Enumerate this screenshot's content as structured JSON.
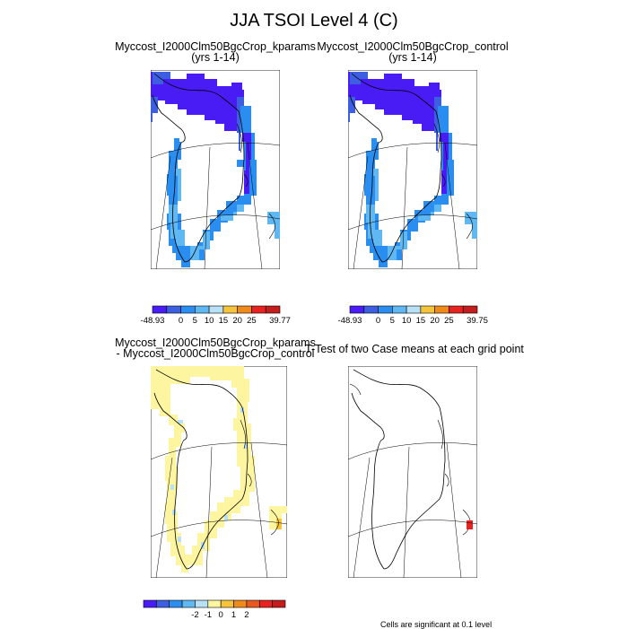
{
  "figure": {
    "title": "JJA TSOI Level 4 (C)"
  },
  "panels": {
    "top_left": {
      "title": "Myccost_I2000Clm50BgcCrop_kparams",
      "subtitle": "(yrs 1-14)",
      "colorbar": {
        "labels": [
          "-48.93",
          "0",
          "5",
          "10",
          "15",
          "20",
          "25",
          "39.77"
        ],
        "colors": [
          "#4a1cf5",
          "#3d5ee0",
          "#2a8ef0",
          "#5fb8f2",
          "#b8e0f6",
          "#f5c43a",
          "#f08a1a",
          "#e8231f",
          "#c41d1d"
        ]
      }
    },
    "top_right": {
      "title": "Myccost_I2000Clm50BgcCrop_control",
      "subtitle": "(yrs 1-14)",
      "colorbar": {
        "labels": [
          "-48.93",
          "0",
          "5",
          "10",
          "15",
          "20",
          "25",
          "39.75"
        ],
        "colors": [
          "#4a1cf5",
          "#3d5ee0",
          "#2a8ef0",
          "#5fb8f2",
          "#b8e0f6",
          "#f5c43a",
          "#f08a1a",
          "#e8231f",
          "#c41d1d"
        ]
      }
    },
    "bottom_left": {
      "title": "Myccost_I2000Clm50BgcCrop_kparams",
      "subtitle": "- Myccost_I2000Clm50BgcCrop_control",
      "colorbar": {
        "labels": [
          "-2",
          "-1",
          "0",
          "1",
          "2"
        ],
        "colors": [
          "#4a1cf5",
          "#3d5ee0",
          "#2a8ef0",
          "#5fb8f2",
          "#b8e0f6",
          "#fdf5a0",
          "#f5c43a",
          "#f08a1a",
          "#e8591f",
          "#e8231f",
          "#c41d1d"
        ]
      }
    },
    "bottom_right": {
      "title": "T-Test of two Case means at each grid point",
      "footnote": "Cells are significant at 0.1 level"
    }
  },
  "colors": {
    "cold_dark": "#4a1cf5",
    "cold_mid": "#3d5ee0",
    "blue": "#2a8ef0",
    "light_blue": "#5fb8f2",
    "diff_yellow": "#fdf5a0",
    "significant": "#e8231f"
  }
}
